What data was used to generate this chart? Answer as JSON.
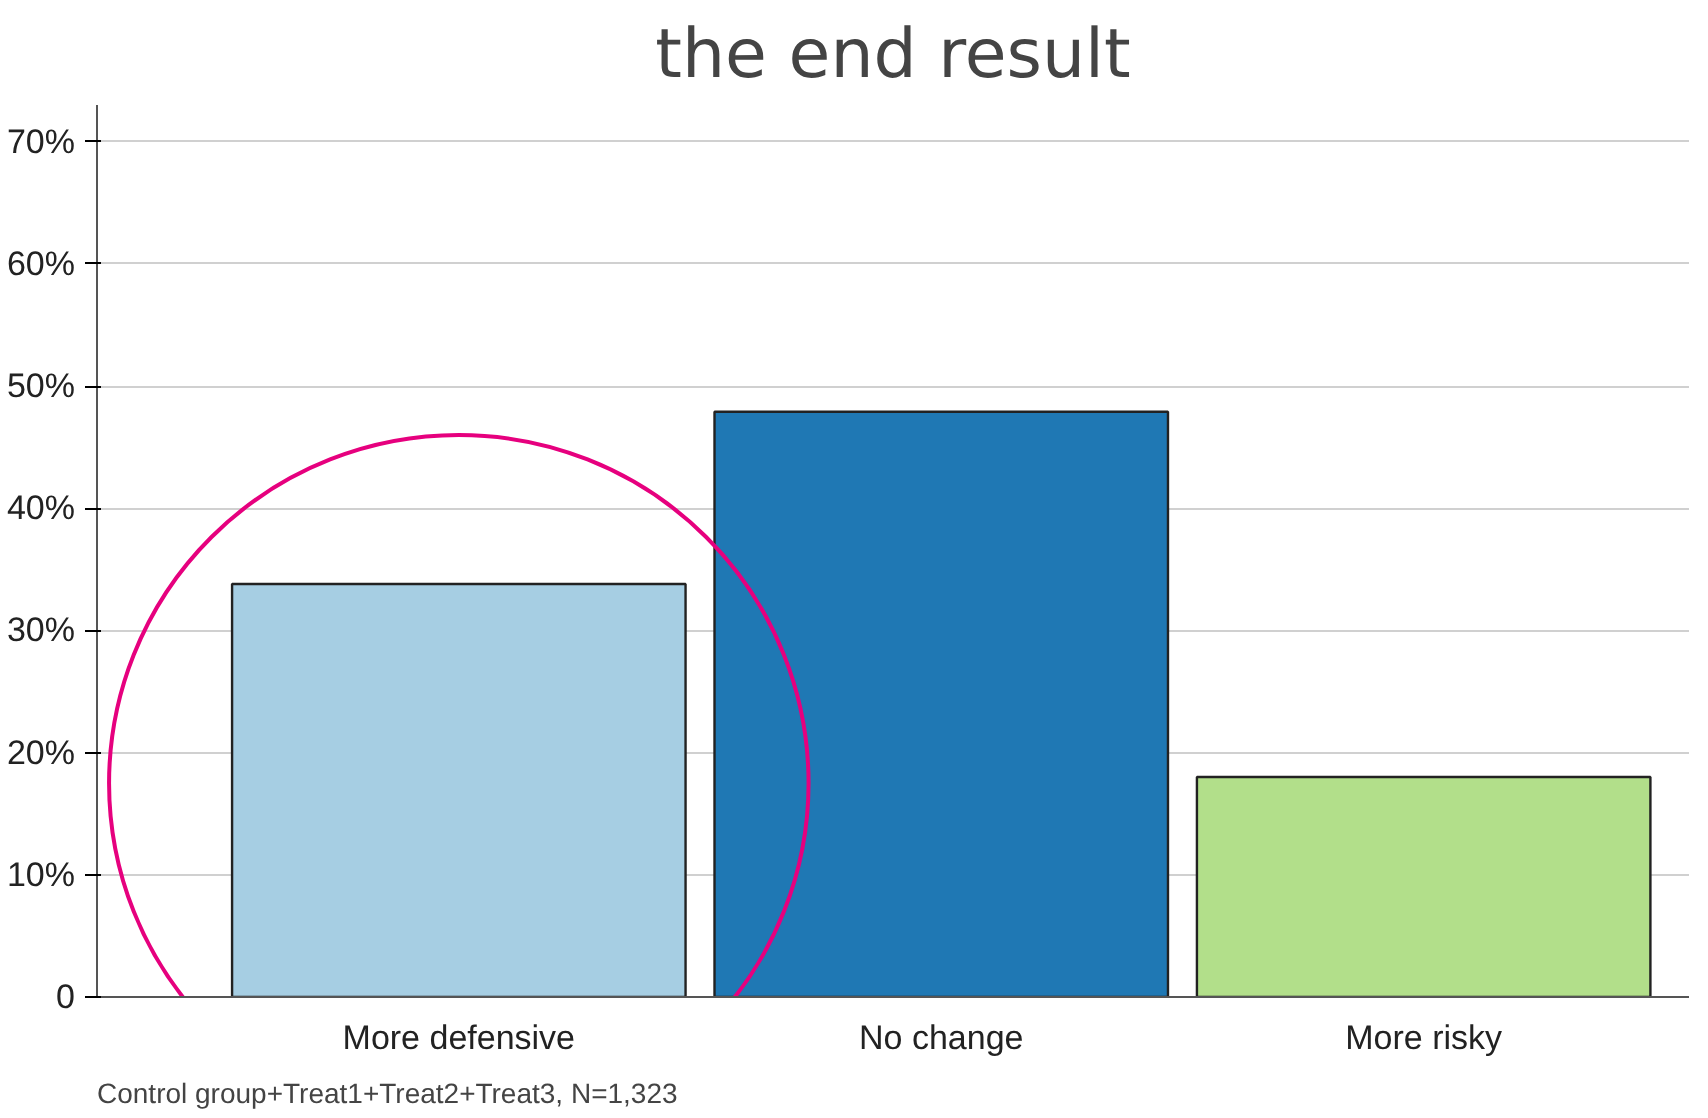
{
  "chart_data": {
    "type": "bar",
    "title": "the end result",
    "categories": [
      "More defensive",
      "No change",
      "More risky"
    ],
    "values": [
      33.8,
      47.9,
      18.0
    ],
    "colors": [
      "#a6cee3",
      "#1f78b4",
      "#b2df8a"
    ],
    "ylim": [
      0,
      73
    ],
    "yticks": [
      {
        "value": 0,
        "label": "0"
      },
      {
        "value": 10,
        "label": "10%"
      },
      {
        "value": 20,
        "label": "20%"
      },
      {
        "value": 30,
        "label": "30%"
      },
      {
        "value": 40,
        "label": "40%"
      },
      {
        "value": 50,
        "label": "50%"
      },
      {
        "value": 60,
        "label": "60%"
      },
      {
        "value": 70,
        "label": "70%"
      }
    ],
    "grid": "y",
    "annotations": [
      "Control group+Treat1+Treat2+Treat3, N=1,323"
    ]
  }
}
